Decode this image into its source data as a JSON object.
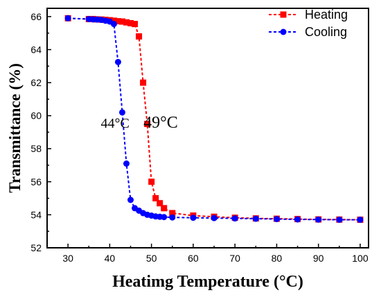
{
  "chart_data": {
    "type": "line",
    "xlabel": "Heatimg Temperature (°C)",
    "ylabel": "Transmittance (%)",
    "xlim": [
      25,
      102
    ],
    "ylim": [
      52,
      66.5
    ],
    "xticks": [
      30,
      40,
      50,
      60,
      70,
      80,
      90,
      100
    ],
    "yticks": [
      52,
      54,
      56,
      58,
      60,
      62,
      64,
      66
    ],
    "grid": false,
    "legend_position": "top-right",
    "annotations": [
      {
        "text": "44°C",
        "x": 41.3,
        "y": 59.6
      },
      {
        "text": "49°C",
        "x": 52.2,
        "y": 59.6
      }
    ],
    "series": [
      {
        "name": "Heating",
        "color": "#ff0000",
        "marker": "square",
        "line_style": "dashed",
        "x": [
          30,
          35,
          36,
          37,
          38,
          39,
          40,
          41,
          42,
          43,
          44,
          45,
          46,
          47,
          48,
          49,
          50,
          51,
          52,
          53,
          55,
          60,
          65,
          70,
          75,
          80,
          85,
          90,
          95,
          100
        ],
        "y": [
          65.9,
          65.85,
          65.85,
          65.83,
          65.82,
          65.8,
          65.78,
          65.75,
          65.72,
          65.7,
          65.65,
          65.6,
          65.55,
          64.8,
          62.0,
          59.5,
          56.0,
          55.0,
          54.7,
          54.4,
          54.1,
          53.95,
          53.88,
          53.82,
          53.78,
          53.76,
          53.74,
          53.72,
          53.71,
          53.7
        ]
      },
      {
        "name": "Cooling",
        "color": "#0000ff",
        "marker": "circle",
        "line_style": "dashed",
        "x": [
          30,
          35,
          36,
          37,
          38,
          39,
          40,
          41,
          42,
          43,
          44,
          45,
          46,
          47,
          48,
          49,
          50,
          51,
          52,
          53,
          55,
          60,
          65,
          70,
          75,
          80,
          85,
          90,
          95,
          100
        ],
        "y": [
          65.9,
          65.85,
          65.83,
          65.82,
          65.8,
          65.75,
          65.7,
          65.55,
          63.25,
          60.2,
          57.1,
          54.9,
          54.4,
          54.25,
          54.1,
          54.0,
          53.95,
          53.9,
          53.88,
          53.86,
          53.84,
          53.82,
          53.8,
          53.78,
          53.76,
          53.74,
          53.72,
          53.71,
          53.7,
          53.7
        ]
      }
    ]
  }
}
